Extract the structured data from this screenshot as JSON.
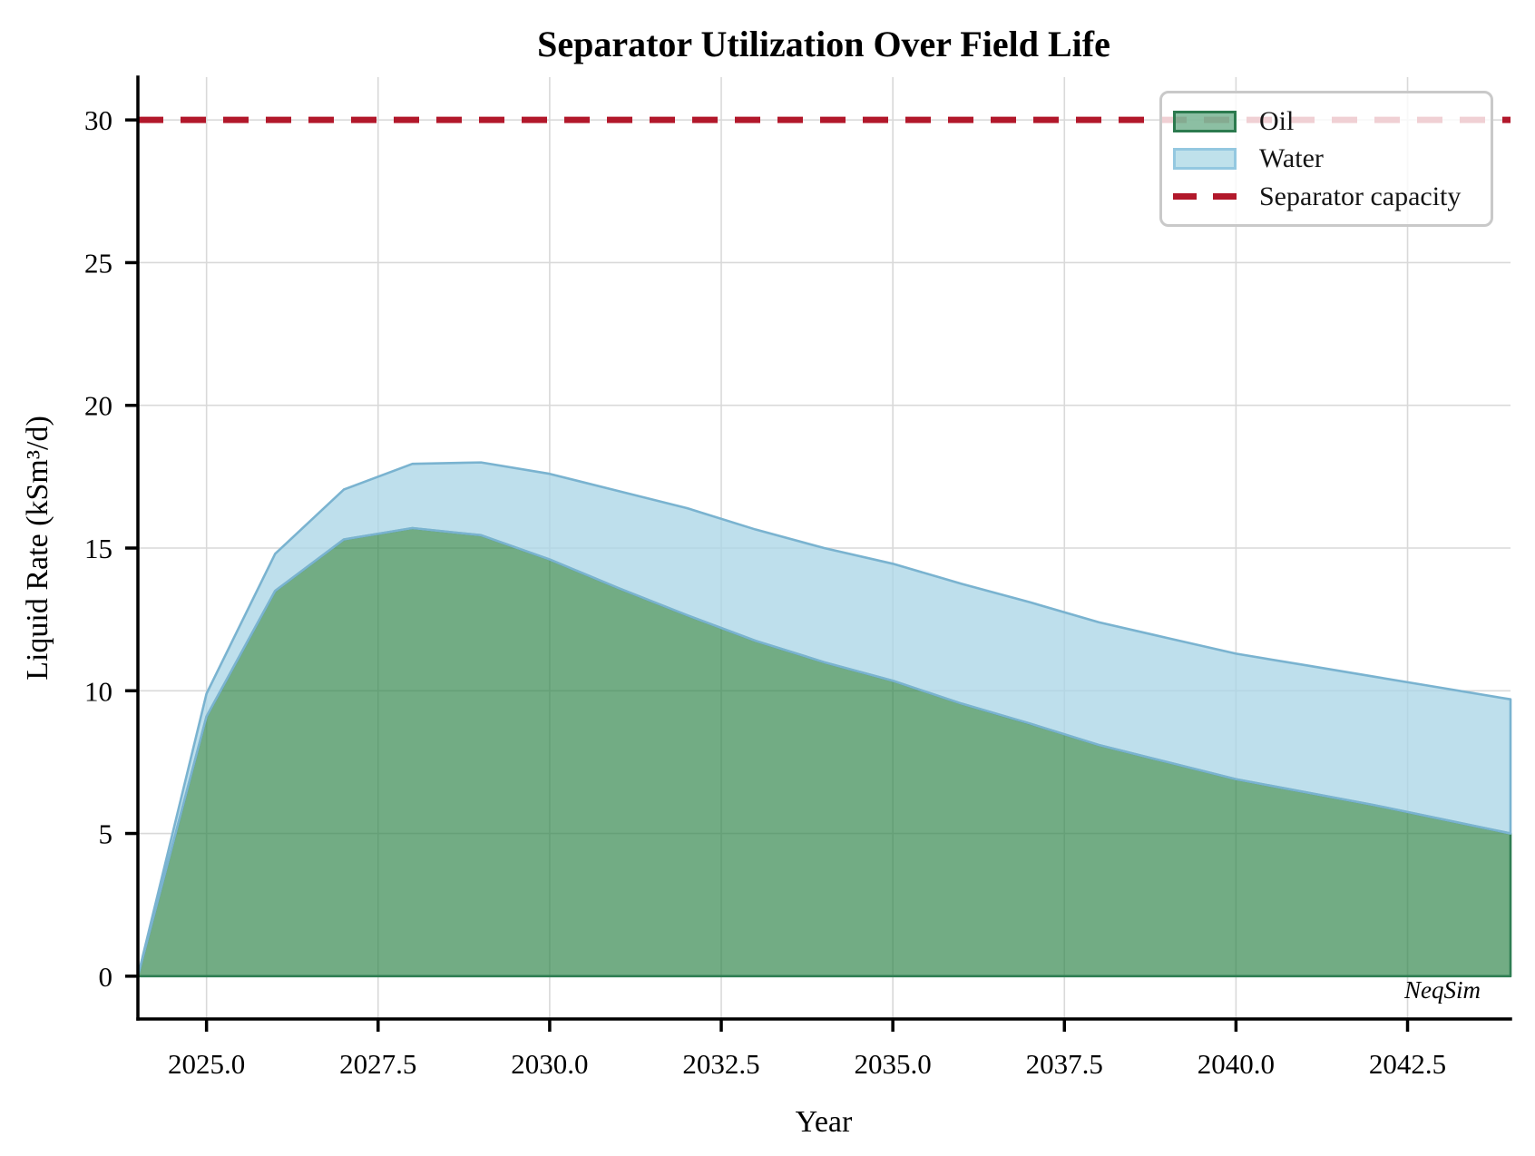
{
  "watermark": "NeqSim",
  "legend": {
    "items": [
      "Oil",
      "Water",
      "Separator capacity"
    ]
  },
  "chart_data": {
    "type": "area",
    "stacked": true,
    "title": "Separator Utilization Over Field Life",
    "xlabel": "Year",
    "ylabel": "Liquid Rate (kSm³/d)",
    "x": [
      2024,
      2025,
      2026,
      2027,
      2028,
      2029,
      2030,
      2031,
      2032,
      2033,
      2034,
      2035,
      2036,
      2037,
      2038,
      2039,
      2040,
      2041,
      2042,
      2043,
      2044
    ],
    "series": [
      {
        "name": "Oil",
        "values": [
          0,
          9.1,
          13.5,
          15.3,
          15.7,
          15.45,
          14.6,
          13.6,
          12.65,
          11.75,
          11.0,
          10.35,
          9.55,
          8.85,
          8.1,
          7.5,
          6.9,
          6.45,
          6.0,
          5.5,
          5.0
        ]
      },
      {
        "name": "Water",
        "values": [
          0,
          0.8,
          1.3,
          1.75,
          2.25,
          2.55,
          3.0,
          3.4,
          3.75,
          3.9,
          4.0,
          4.1,
          4.2,
          4.25,
          4.3,
          4.35,
          4.4,
          4.45,
          4.5,
          4.6,
          4.7
        ]
      }
    ],
    "capacity": {
      "label": "Separator capacity",
      "value": 30
    },
    "xlim": [
      2024,
      2044
    ],
    "ylim": [
      -1.5,
      31.5
    ],
    "xticks": [
      {
        "v": 2025.0,
        "label": "2025.0"
      },
      {
        "v": 2027.5,
        "label": "2027.5"
      },
      {
        "v": 2030.0,
        "label": "2030.0"
      },
      {
        "v": 2032.5,
        "label": "2032.5"
      },
      {
        "v": 2035.0,
        "label": "2035.0"
      },
      {
        "v": 2037.5,
        "label": "2037.5"
      },
      {
        "v": 2040.0,
        "label": "2040.0"
      },
      {
        "v": 2042.5,
        "label": "2042.5"
      }
    ],
    "yticks": [
      {
        "v": 0,
        "label": "0"
      },
      {
        "v": 5,
        "label": "5"
      },
      {
        "v": 10,
        "label": "10"
      },
      {
        "v": 15,
        "label": "15"
      },
      {
        "v": 20,
        "label": "20"
      },
      {
        "v": 25,
        "label": "25"
      },
      {
        "v": 30,
        "label": "30"
      }
    ],
    "grid": true,
    "legend_position": "upper right",
    "colors": {
      "oil_fill": "rgba(47,133,73,0.68)",
      "oil_edge": "#2f7e53",
      "water_fill": "rgba(168,212,230,0.75)",
      "water_edge": "#7ab3d0",
      "capacity": "#b2182b",
      "grid": "#d9d9d9",
      "axis": "#000000"
    }
  }
}
